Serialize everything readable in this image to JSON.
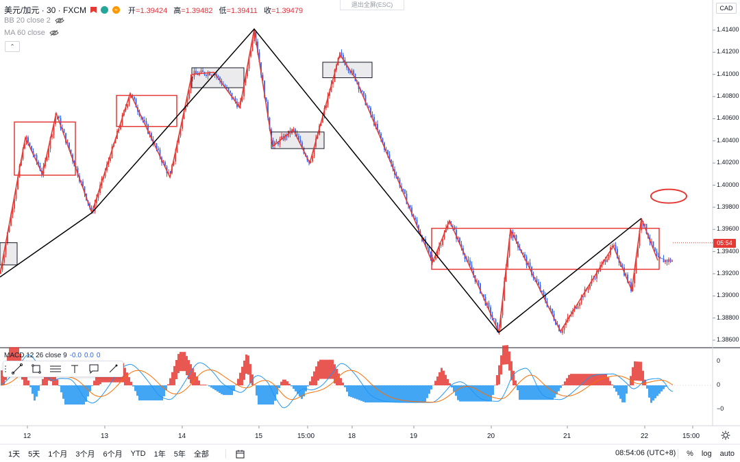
{
  "legend": {
    "symbol": "美元/加元 · 30 · FXCM",
    "open_label": "开",
    "open": "=1.39424",
    "high_label": "高",
    "high": "=1.39482",
    "low_label": "低",
    "low": "=1.39411",
    "close_label": "收",
    "close": "=1.39479",
    "bb": "BB 20 close 2",
    "ma": "MA 60 close"
  },
  "exit_fullscreen": "退出全屏(ESC)",
  "currency": "CAD",
  "price_axis": [
    "1.41400",
    "1.41200",
    "1.41000",
    "1.40800",
    "1.40600",
    "1.40400",
    "1.40200",
    "1.40000",
    "1.39800",
    "1.39600",
    "1.39400",
    "1.39200",
    "1.39000",
    "1.38800",
    "1.38600"
  ],
  "current_price_tag": "05:54",
  "macd": {
    "legend": "MACD 12 26 close 9",
    "values": [
      "-0.0",
      "0.0",
      "0"
    ],
    "axis": [
      "0",
      "0",
      "−0"
    ]
  },
  "time_axis": [
    "12",
    "13",
    "14",
    "15",
    "15:00",
    "18",
    "19",
    "20",
    "21",
    "22",
    "15:00"
  ],
  "ranges": [
    "1天",
    "5天",
    "1个月",
    "3个月",
    "6个月",
    "YTD",
    "1年",
    "5年",
    "全部"
  ],
  "clock": "08:54:06 (UTC+8)",
  "scale_options": [
    "%",
    "log",
    "auto"
  ],
  "icons": {
    "eye": "eye-icon",
    "calendar": "calendar-icon",
    "gear": "gear-icon",
    "line": "trend-line-icon",
    "rect": "rectangle-icon",
    "text": "text-icon"
  },
  "colors": {
    "up": "#e53935",
    "down": "#2962ff",
    "box": "#e53935",
    "zigzag": "#e53935",
    "trend": "#000000"
  },
  "chart_data": {
    "type": "line",
    "title": "美元/加元 · 30 · FXCM",
    "ylim": [
      1.3855,
      1.4155
    ],
    "ylabel": "CAD",
    "zigzag_major": [
      {
        "t": 0,
        "p": 1.3917
      },
      {
        "t": 134,
        "p": 1.3975
      },
      {
        "t": 371,
        "p": 1.4141
      },
      {
        "t": 728,
        "p": 1.3867
      },
      {
        "t": 936,
        "p": 1.397
      }
    ],
    "zigzag_minor": [
      {
        "t": 0,
        "p": 1.392
      },
      {
        "t": 37,
        "p": 1.4043
      },
      {
        "t": 62,
        "p": 1.401
      },
      {
        "t": 82,
        "p": 1.4065
      },
      {
        "t": 134,
        "p": 1.3975
      },
      {
        "t": 190,
        "p": 1.4083
      },
      {
        "t": 248,
        "p": 1.4007
      },
      {
        "t": 280,
        "p": 1.41
      },
      {
        "t": 312,
        "p": 1.4102
      },
      {
        "t": 350,
        "p": 1.407
      },
      {
        "t": 371,
        "p": 1.4141
      },
      {
        "t": 398,
        "p": 1.4035
      },
      {
        "t": 428,
        "p": 1.405
      },
      {
        "t": 452,
        "p": 1.402
      },
      {
        "t": 496,
        "p": 1.4118
      },
      {
        "t": 520,
        "p": 1.4095
      },
      {
        "t": 631,
        "p": 1.393
      },
      {
        "t": 656,
        "p": 1.3968
      },
      {
        "t": 728,
        "p": 1.3867
      },
      {
        "t": 745,
        "p": 1.396
      },
      {
        "t": 818,
        "p": 1.3868
      },
      {
        "t": 870,
        "p": 1.392
      },
      {
        "t": 895,
        "p": 1.3945
      },
      {
        "t": 922,
        "p": 1.3905
      },
      {
        "t": 936,
        "p": 1.397
      },
      {
        "t": 960,
        "p": 1.3932
      }
    ],
    "boxes": [
      {
        "kind": "red",
        "t0": 21,
        "t1": 110,
        "p0": 1.4057,
        "p1": 1.4009
      },
      {
        "kind": "red",
        "t0": 170,
        "t1": 258,
        "p0": 1.4081,
        "p1": 1.4053
      },
      {
        "kind": "red",
        "t0": 630,
        "t1": 962,
        "p0": 1.3961,
        "p1": 1.3924
      },
      {
        "kind": "gray",
        "t0": 0,
        "t1": 25,
        "p0": 1.3948,
        "p1": 1.3928
      },
      {
        "kind": "gray",
        "t0": 280,
        "t1": 356,
        "p0": 1.4106,
        "p1": 1.4088
      },
      {
        "kind": "gray",
        "t0": 396,
        "t1": 473,
        "p0": 1.4048,
        "p1": 1.4033
      },
      {
        "kind": "gray",
        "t0": 471,
        "t1": 543,
        "p0": 1.4111,
        "p1": 1.4097
      }
    ],
    "annotation": {
      "type": "ellipse",
      "t": 976,
      "p": 1.399
    },
    "last_price": 1.39479
  }
}
